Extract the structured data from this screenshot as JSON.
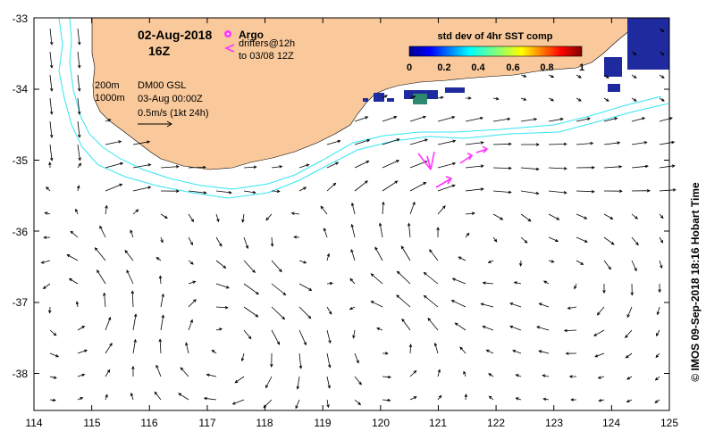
{
  "map": {
    "date": "02-Aug-2018",
    "hour": "16Z",
    "argo_label": "Argo",
    "drifters_line1": "drifters@12h",
    "drifters_line2": "to 03/08 12Z",
    "contour_200": "200m",
    "contour_1000": "1000m",
    "product": "DM00 GSL",
    "valid_time": "03-Aug 00:00Z",
    "scale_label": "0.5m/s (1kt 24h)",
    "colorbar_title": "std dev of 4hr SST comp",
    "colorbar_ticks": [
      "0",
      "0.2",
      "0.4",
      "0.6",
      "0.8",
      "1"
    ],
    "credit": "© IMOS 09-Sep-2018 18:16 Hobart Time",
    "lon_ticks": [
      "114",
      "115",
      "116",
      "117",
      "118",
      "119",
      "120",
      "121",
      "122",
      "123",
      "124",
      "125"
    ],
    "lat_ticks": [
      "-33",
      "-34",
      "-35",
      "-36",
      "-37",
      "-38"
    ],
    "colors": {
      "land": "#f9c99b",
      "shelf_contour": "#33e6f0",
      "drifter": "#ff33ff",
      "arrow": "#000000"
    },
    "icons": {
      "argo": "argo-float-marker",
      "drifter": "drifter-track-arrow"
    }
  }
}
